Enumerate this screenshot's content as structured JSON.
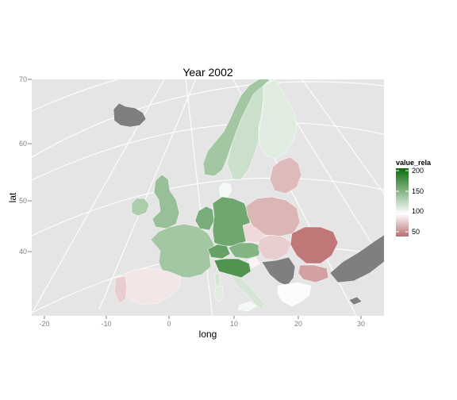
{
  "chart_data": {
    "type": "choropleth-map",
    "title": "Year 2002",
    "xlabel": "long",
    "ylabel": "lat",
    "x_ticks": [
      "-20",
      "-10",
      "0",
      "10",
      "20",
      "30"
    ],
    "y_ticks": [
      "70",
      "60",
      "50",
      "40"
    ],
    "xlim": [
      -22,
      34
    ],
    "ylim": [
      29,
      70
    ],
    "legend": {
      "title": "value_rela",
      "ticks": [
        "200",
        "150",
        "100",
        "50"
      ],
      "range": [
        40,
        205
      ],
      "colors": {
        "low": "#b25a5a",
        "mid": "#ffffff",
        "high": "#006400",
        "missing": "#7f7f7f"
      }
    },
    "regions": [
      {
        "name": "Iceland",
        "value": null
      },
      {
        "name": "Norway",
        "value": 145
      },
      {
        "name": "Sweden",
        "value": 125
      },
      {
        "name": "Finland",
        "value": 115
      },
      {
        "name": "Ireland",
        "value": 140
      },
      {
        "name": "United Kingdom",
        "value": 150
      },
      {
        "name": "France",
        "value": 145
      },
      {
        "name": "Belgium-Netherlands",
        "value": 165
      },
      {
        "name": "Germany",
        "value": 170
      },
      {
        "name": "Denmark",
        "value": 105
      },
      {
        "name": "Switzerland",
        "value": 175
      },
      {
        "name": "Austria",
        "value": 160
      },
      {
        "name": "Italy North",
        "value": 185
      },
      {
        "name": "Italy South",
        "value": 120
      },
      {
        "name": "Spain",
        "value": 90
      },
      {
        "name": "Portugal",
        "value": 80
      },
      {
        "name": "Czech Republic",
        "value": 85
      },
      {
        "name": "Poland",
        "value": 70
      },
      {
        "name": "Baltics",
        "value": 72
      },
      {
        "name": "Slovakia-Hungary",
        "value": 80
      },
      {
        "name": "Slovenia",
        "value": 95
      },
      {
        "name": "Romania",
        "value": 45
      },
      {
        "name": "Bulgaria",
        "value": 62
      },
      {
        "name": "Greece",
        "value": 102
      },
      {
        "name": "Western Balkans",
        "value": null
      },
      {
        "name": "Turkey",
        "value": null
      },
      {
        "name": "Corsica",
        "value": 120
      },
      {
        "name": "Sardinia",
        "value": 115
      },
      {
        "name": "Sicily",
        "value": 105
      },
      {
        "name": "Cyprus",
        "value": null
      }
    ]
  }
}
